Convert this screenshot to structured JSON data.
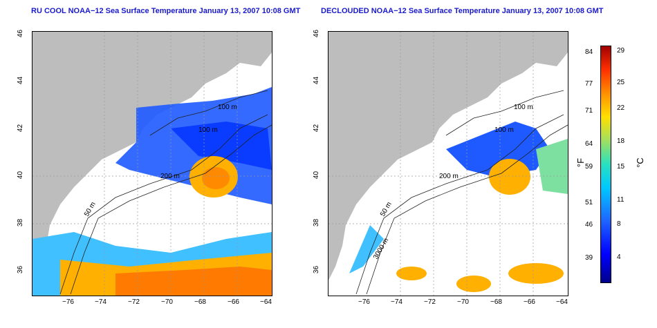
{
  "left_panel": {
    "title": "RU COOL NOAA−12 Sea Surface Temperature January 13, 2007 10:08 GMT",
    "contours": [
      "100 m",
      "100 m",
      "200 m",
      "50 m"
    ]
  },
  "right_panel": {
    "title": "DECLOUDED NOAA−12 Sea Surface Temperature January 13, 2007 10:08 GMT",
    "contours": [
      "100 m",
      "100 m",
      "200 m",
      "50 m",
      "3000 m"
    ]
  },
  "axes": {
    "x_ticks": [
      "−76",
      "−74",
      "−72",
      "−70",
      "−68",
      "−66",
      "−64"
    ],
    "y_ticks": [
      "36",
      "38",
      "40",
      "42",
      "44",
      "46"
    ]
  },
  "colorbar": {
    "f_ticks": [
      "84",
      "77",
      "71",
      "64",
      "59",
      "51",
      "46",
      "39"
    ],
    "c_ticks": [
      "29",
      "25",
      "22",
      "18",
      "15",
      "11",
      "8",
      "4"
    ],
    "f_unit": "°F",
    "c_unit": "°C"
  },
  "colors": {
    "land": "#bdbdbd",
    "cold": "#0a3cff",
    "warm": "#ffa500",
    "title": "#1a1acd"
  }
}
